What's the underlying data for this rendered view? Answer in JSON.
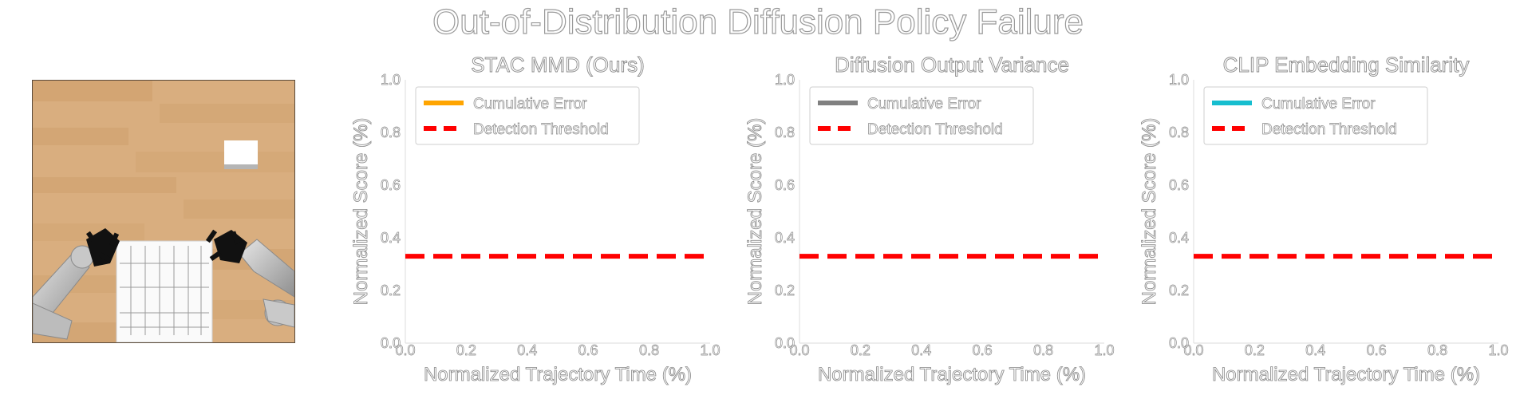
{
  "figure": {
    "suptitle": "Out-of-Distribution Diffusion Policy Failure"
  },
  "chart_data": [
    {
      "type": "line",
      "title": "STAC MMD (Ours)",
      "xlabel": "Normalized Trajectory Time (%)",
      "ylabel": "Normalized Score (%)",
      "xlim": [
        0.0,
        1.0
      ],
      "ylim": [
        0.0,
        1.0
      ],
      "xticks": [
        "0.0",
        "0.2",
        "0.4",
        "0.6",
        "0.8",
        "1.0"
      ],
      "yticks": [
        "0.0",
        "0.2",
        "0.4",
        "0.6",
        "0.8",
        "1.0"
      ],
      "grid": false,
      "legend_position": "top-left",
      "series": [
        {
          "name": "Cumulative Error",
          "color": "#FFA500",
          "style": "solid",
          "x": [],
          "y": []
        },
        {
          "name": "Detection Threshold",
          "color": "#FF0000",
          "style": "dashed",
          "x": [
            0.0,
            1.0
          ],
          "y": [
            0.33,
            0.33
          ]
        }
      ]
    },
    {
      "type": "line",
      "title": "Diffusion Output Variance",
      "xlabel": "Normalized Trajectory Time (%)",
      "ylabel": "Normalized Score (%)",
      "xlim": [
        0.0,
        1.0
      ],
      "ylim": [
        0.0,
        1.0
      ],
      "xticks": [
        "0.0",
        "0.2",
        "0.4",
        "0.6",
        "0.8",
        "1.0"
      ],
      "yticks": [
        "0.0",
        "0.2",
        "0.4",
        "0.6",
        "0.8",
        "1.0"
      ],
      "grid": false,
      "legend_position": "top-left",
      "series": [
        {
          "name": "Cumulative Error",
          "color": "#808080",
          "style": "solid",
          "x": [],
          "y": []
        },
        {
          "name": "Detection Threshold",
          "color": "#FF0000",
          "style": "dashed",
          "x": [
            0.0,
            1.0
          ],
          "y": [
            0.33,
            0.33
          ]
        }
      ]
    },
    {
      "type": "line",
      "title": "CLIP Embedding Similarity",
      "xlabel": "Normalized Trajectory Time (%)",
      "ylabel": "Normalized Score (%)",
      "xlim": [
        0.0,
        1.0
      ],
      "ylim": [
        0.0,
        1.0
      ],
      "xticks": [
        "0.0",
        "0.2",
        "0.4",
        "0.6",
        "0.8",
        "1.0"
      ],
      "yticks": [
        "0.0",
        "0.2",
        "0.4",
        "0.6",
        "0.8",
        "1.0"
      ],
      "grid": false,
      "legend_position": "top-left",
      "series": [
        {
          "name": "Cumulative Error",
          "color": "#17BECF",
          "style": "solid",
          "x": [],
          "y": []
        },
        {
          "name": "Detection Threshold",
          "color": "#FF0000",
          "style": "dashed",
          "x": [
            0.0,
            1.0
          ],
          "y": [
            0.33,
            0.33
          ]
        }
      ]
    }
  ],
  "scene": {
    "colors": {
      "floor_light": "#D9AE7F",
      "floor_dark": "#C8965F",
      "floor_border": "#5A4A3A",
      "box": "#FFFFFF",
      "robot_arm": "#C8C8C8",
      "gripper": "#111111"
    }
  }
}
